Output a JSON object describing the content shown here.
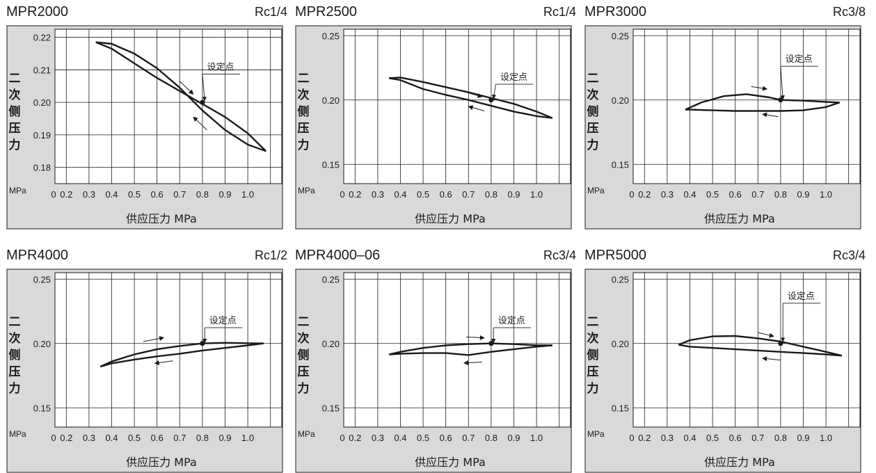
{
  "chart_data": [
    {
      "type": "line",
      "title": "MPR2000",
      "port": "Rc1/4",
      "xlabel": "供应压力 MPa",
      "ylabel": [
        "二",
        "次",
        "侧",
        "压",
        "力"
      ],
      "yunit": "MPa",
      "x_ticks": [
        "0",
        "0.2",
        "0.3",
        "0.4",
        "0.5",
        "0.6",
        "0.7",
        "0.8",
        "0.9",
        "1.0"
      ],
      "y_ticks": [
        "0.22",
        "0.21",
        "0.20",
        "0.19",
        "0.18"
      ],
      "ylim": [
        0.175,
        0.2225
      ],
      "xlim": [
        0.05,
        1.05
      ],
      "setpoint_label": "设定点",
      "setpoint": {
        "x": 0.7,
        "y": 0.2
      },
      "series": [
        {
          "x": [
            0.23,
            0.3,
            0.4,
            0.5,
            0.6,
            0.7,
            0.8,
            0.9,
            0.98
          ],
          "y": [
            0.2185,
            0.2165,
            0.212,
            0.2075,
            0.2035,
            0.1995,
            0.1955,
            0.1905,
            0.185
          ]
        },
        {
          "x": [
            0.98,
            0.9,
            0.8,
            0.7,
            0.6,
            0.5,
            0.4,
            0.3,
            0.23
          ],
          "y": [
            0.185,
            0.187,
            0.1915,
            0.1975,
            0.2045,
            0.2105,
            0.215,
            0.218,
            0.2185
          ]
        }
      ],
      "arrows": [
        {
          "from": [
            0.6,
            0.2065
          ],
          "to": [
            0.66,
            0.2025
          ]
        },
        {
          "from": [
            0.72,
            0.1915
          ],
          "to": [
            0.66,
            0.1955
          ]
        }
      ],
      "label_pos": [
        0.78,
        0.21
      ],
      "label_anchor": [
        0.71,
        0.2005
      ]
    },
    {
      "type": "line",
      "title": "MPR2500",
      "port": "Rc1/4",
      "xlabel": "供应压力 MPa",
      "ylabel": [
        "二",
        "次",
        "侧",
        "压",
        "力"
      ],
      "yunit": "MPa",
      "x_ticks": [
        "0",
        "0.2",
        "0.3",
        "0.4",
        "0.5",
        "0.6",
        "0.7",
        "0.8",
        "0.9",
        "1.0"
      ],
      "y_ticks": [
        "0.25",
        "0.20",
        "0.15"
      ],
      "ylim": [
        0.135,
        0.255
      ],
      "xlim": [
        0.05,
        1.05
      ],
      "setpoint_label": "设定点",
      "setpoint": {
        "x": 0.7,
        "y": 0.2
      },
      "series": [
        {
          "x": [
            0.25,
            0.3,
            0.4,
            0.5,
            0.6,
            0.7,
            0.8,
            0.9,
            0.97
          ],
          "y": [
            0.217,
            0.2175,
            0.214,
            0.21,
            0.206,
            0.2015,
            0.197,
            0.191,
            0.186
          ]
        },
        {
          "x": [
            0.97,
            0.9,
            0.8,
            0.7,
            0.6,
            0.5,
            0.4,
            0.35,
            0.3,
            0.25
          ],
          "y": [
            0.186,
            0.1875,
            0.191,
            0.1955,
            0.2,
            0.204,
            0.2085,
            0.212,
            0.2155,
            0.217
          ]
        }
      ],
      "arrows": [
        {
          "from": [
            0.59,
            0.206
          ],
          "to": [
            0.66,
            0.2025
          ]
        },
        {
          "from": [
            0.67,
            0.1915
          ],
          "to": [
            0.6,
            0.195
          ]
        }
      ],
      "label_pos": [
        0.8,
        0.2155
      ],
      "label_anchor": [
        0.71,
        0.201
      ]
    },
    {
      "type": "line",
      "title": "MPR3000",
      "port": "Rc3/8",
      "xlabel": "供应压力 MPa",
      "ylabel": [
        "二",
        "次",
        "侧",
        "压",
        "力"
      ],
      "yunit": "MPa",
      "x_ticks": [
        "0",
        "0.2",
        "0.3",
        "0.4",
        "0.5",
        "0.6",
        "0.7",
        "0.8",
        "0.9",
        "1.0"
      ],
      "y_ticks": [
        "0.25",
        "0.20",
        "0.15"
      ],
      "ylim": [
        0.135,
        0.255
      ],
      "xlim": [
        0.05,
        1.05
      ],
      "setpoint_label": "设定点",
      "setpoint": {
        "x": 0.7,
        "y": 0.2
      },
      "series": [
        {
          "x": [
            0.28,
            0.35,
            0.45,
            0.55,
            0.65,
            0.7,
            0.8,
            0.9,
            0.96
          ],
          "y": [
            0.1925,
            0.198,
            0.203,
            0.2045,
            0.202,
            0.2,
            0.1995,
            0.1985,
            0.198
          ]
        },
        {
          "x": [
            0.96,
            0.9,
            0.8,
            0.7,
            0.6,
            0.5,
            0.4,
            0.3,
            0.28
          ],
          "y": [
            0.198,
            0.1945,
            0.192,
            0.1915,
            0.1915,
            0.1915,
            0.192,
            0.1925,
            0.1925
          ]
        }
      ],
      "arrows": [
        {
          "from": [
            0.57,
            0.2105
          ],
          "to": [
            0.64,
            0.2085
          ]
        },
        {
          "from": [
            0.69,
            0.187
          ],
          "to": [
            0.62,
            0.189
          ]
        }
      ],
      "label_pos": [
        0.78,
        0.2295
      ],
      "label_anchor": [
        0.71,
        0.2005
      ]
    },
    {
      "type": "line",
      "title": "MPR4000",
      "port": "Rc1/2",
      "xlabel": "供应压力 MPa",
      "ylabel": [
        "二",
        "次",
        "侧",
        "压",
        "力"
      ],
      "yunit": "MPa",
      "x_ticks": [
        "0",
        "0.2",
        "0.3",
        "0.4",
        "0.5",
        "0.6",
        "0.7",
        "0.8",
        "0.9",
        "1.0"
      ],
      "y_ticks": [
        "0.25",
        "0.20",
        "0.15"
      ],
      "ylim": [
        0.135,
        0.255
      ],
      "xlim": [
        0.05,
        1.05
      ],
      "setpoint_label": "设定点",
      "setpoint": {
        "x": 0.7,
        "y": 0.2
      },
      "series": [
        {
          "x": [
            0.25,
            0.3,
            0.4,
            0.5,
            0.6,
            0.7,
            0.8,
            0.9,
            0.97
          ],
          "y": [
            0.182,
            0.186,
            0.1915,
            0.1955,
            0.198,
            0.2,
            0.2005,
            0.2002,
            0.2
          ]
        },
        {
          "x": [
            0.97,
            0.9,
            0.8,
            0.7,
            0.6,
            0.5,
            0.4,
            0.3,
            0.25
          ],
          "y": [
            0.2,
            0.1985,
            0.1965,
            0.1945,
            0.192,
            0.19,
            0.1875,
            0.1845,
            0.182
          ]
        }
      ],
      "arrows": [
        {
          "from": [
            0.44,
            0.2015
          ],
          "to": [
            0.53,
            0.2045
          ]
        },
        {
          "from": [
            0.57,
            0.1865
          ],
          "to": [
            0.49,
            0.1845
          ]
        }
      ],
      "label_pos": [
        0.79,
        0.2155
      ],
      "label_anchor": [
        0.71,
        0.2005
      ]
    },
    {
      "type": "line",
      "title": "MPR4000–06",
      "port": "Rc3/4",
      "xlabel": "供应压力 MPa",
      "ylabel": [
        "二",
        "次",
        "侧",
        "压",
        "力"
      ],
      "yunit": "MPa",
      "x_ticks": [
        "0",
        "0.2",
        "0.3",
        "0.4",
        "0.5",
        "0.6",
        "0.7",
        "0.8",
        "0.9",
        "1.0"
      ],
      "y_ticks": [
        "0.25",
        "0.20",
        "0.15"
      ],
      "ylim": [
        0.135,
        0.255
      ],
      "xlim": [
        0.05,
        1.05
      ],
      "setpoint_label": "设定点",
      "setpoint": {
        "x": 0.7,
        "y": 0.2
      },
      "series": [
        {
          "x": [
            0.25,
            0.3,
            0.4,
            0.5,
            0.6,
            0.7,
            0.8,
            0.9,
            0.97
          ],
          "y": [
            0.1915,
            0.1935,
            0.1965,
            0.1985,
            0.1995,
            0.2,
            0.1995,
            0.1985,
            0.1985
          ]
        },
        {
          "x": [
            0.97,
            0.9,
            0.8,
            0.7,
            0.6,
            0.5,
            0.4,
            0.3,
            0.25
          ],
          "y": [
            0.1985,
            0.1975,
            0.1955,
            0.1935,
            0.191,
            0.1925,
            0.1925,
            0.192,
            0.1915
          ]
        }
      ],
      "arrows": [
        {
          "from": [
            0.59,
            0.205
          ],
          "to": [
            0.67,
            0.2043
          ]
        },
        {
          "from": [
            0.66,
            0.1855
          ],
          "to": [
            0.58,
            0.1848
          ]
        }
      ],
      "label_pos": [
        0.79,
        0.2155
      ],
      "label_anchor": [
        0.71,
        0.2005
      ]
    },
    {
      "type": "line",
      "title": "MPR5000",
      "port": "Rc3/4",
      "xlabel": "供应压力 MPa",
      "ylabel": [
        "二",
        "次",
        "侧",
        "压",
        "力"
      ],
      "yunit": "MPa",
      "x_ticks": [
        "0",
        "0.2",
        "0.3",
        "0.4",
        "0.5",
        "0.6",
        "0.7",
        "0.8",
        "0.9",
        "1.0"
      ],
      "y_ticks": [
        "0.25",
        "0.20",
        "0.15"
      ],
      "ylim": [
        0.135,
        0.255
      ],
      "xlim": [
        0.05,
        1.05
      ],
      "setpoint_label": "设定点",
      "setpoint": {
        "x": 0.7,
        "y": 0.2
      },
      "series": [
        {
          "x": [
            0.25,
            0.3,
            0.4,
            0.5,
            0.6,
            0.7,
            0.8,
            0.9,
            0.97
          ],
          "y": [
            0.199,
            0.2025,
            0.2055,
            0.2058,
            0.204,
            0.2015,
            0.1975,
            0.1935,
            0.1905
          ]
        },
        {
          "x": [
            0.97,
            0.9,
            0.8,
            0.7,
            0.6,
            0.5,
            0.4,
            0.3,
            0.25
          ],
          "y": [
            0.1905,
            0.1915,
            0.1925,
            0.1935,
            0.1945,
            0.1955,
            0.1965,
            0.1975,
            0.199
          ]
        }
      ],
      "arrows": [
        {
          "from": [
            0.6,
            0.2085
          ],
          "to": [
            0.67,
            0.2055
          ]
        },
        {
          "from": [
            0.7,
            0.187
          ],
          "to": [
            0.62,
            0.1885
          ]
        }
      ],
      "label_pos": [
        0.79,
        0.2345
      ],
      "label_anchor": [
        0.71,
        0.2015
      ]
    }
  ]
}
